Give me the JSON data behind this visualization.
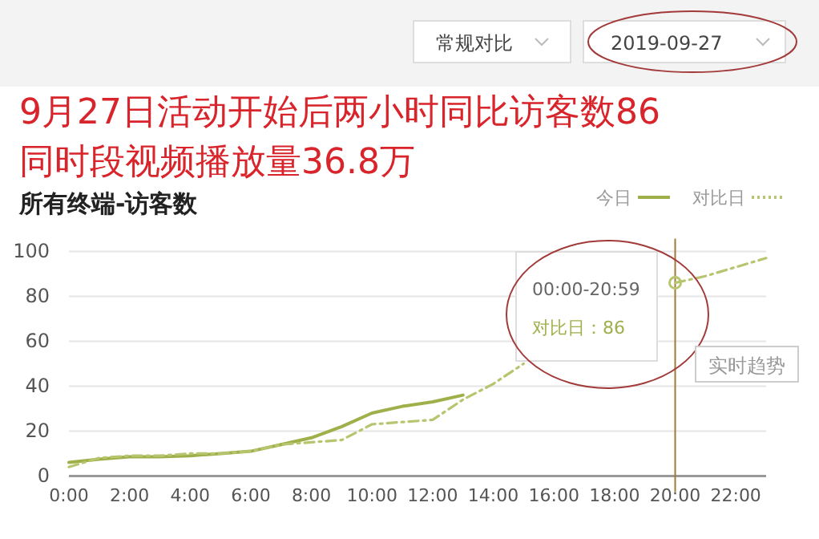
{
  "chart_data": {
    "type": "line",
    "title": "9月27日活动开始后两小时同比访客数86",
    "subtitle": "同时段视频播放量36.8万",
    "annotations": [
      "常规对比",
      "2019-09-27",
      "所有终端-访客数",
      "00:00-20:59",
      "对比日：86",
      "实时趋势"
    ],
    "x": [
      0,
      1,
      2,
      3,
      4,
      5,
      6,
      7,
      8,
      9,
      10,
      11,
      12,
      13,
      14,
      15,
      16,
      17,
      18,
      19,
      20,
      21,
      22,
      23
    ],
    "series": [
      {
        "name": "今日",
        "color": "#9fb04a",
        "line_style": "solid",
        "values": [
          6,
          7.5,
          8.5,
          8.5,
          9,
          10,
          11,
          14,
          17,
          22,
          28,
          31,
          33,
          36,
          null,
          null,
          null,
          null,
          null,
          null,
          null,
          null,
          null,
          null
        ]
      },
      {
        "name": "对比日",
        "color": "#b8c46e",
        "line_style": "dashed",
        "values": [
          4,
          8,
          9,
          9,
          10,
          10,
          11,
          14,
          15,
          16,
          23,
          24,
          25,
          34,
          41,
          50,
          null,
          null,
          null,
          null,
          86,
          89,
          93,
          97
        ]
      }
    ],
    "xlim": [
      0,
      23
    ],
    "ylim": [
      0,
      100
    ],
    "xticks": [
      {
        "value": 0,
        "label": "0:00"
      },
      {
        "value": 2,
        "label": "2:00"
      },
      {
        "value": 4,
        "label": "4:00"
      },
      {
        "value": 6,
        "label": "6:00"
      },
      {
        "value": 8,
        "label": "8:00"
      },
      {
        "value": 10,
        "label": "10:00"
      },
      {
        "value": 12,
        "label": "12:00"
      },
      {
        "value": 14,
        "label": "14:00"
      },
      {
        "value": 16,
        "label": "16:00"
      },
      {
        "value": 18,
        "label": "18:00"
      },
      {
        "value": 20,
        "label": "20:00"
      },
      {
        "value": 22,
        "label": "22:00"
      }
    ],
    "yticks": [
      0,
      20,
      40,
      60,
      80,
      100
    ],
    "ref_lines": [
      {
        "axis": "x",
        "value": 20,
        "color": "#a07a3a"
      }
    ],
    "grid": "y",
    "legend": "top right",
    "marker": "none"
  }
}
